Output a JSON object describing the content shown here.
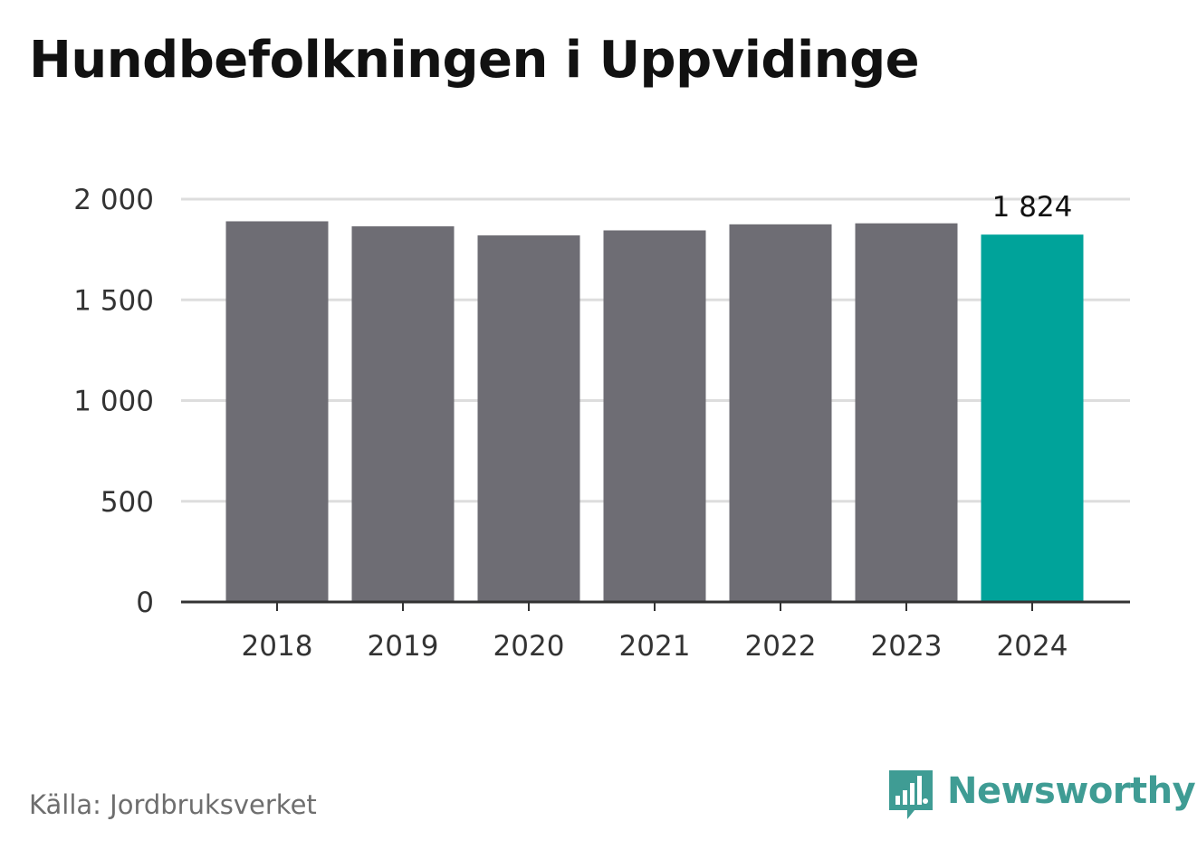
{
  "title": "Hundbefolkningen i Uppvidinge",
  "source": "Källa: Jordbruksverket",
  "brand": {
    "name": "Newsworthy",
    "icon": "newsworthy-logo-icon",
    "color": "#3f9c94"
  },
  "chart_data": {
    "type": "bar",
    "title": "Hundbefolkningen i Uppvidinge",
    "xlabel": "",
    "ylabel": "",
    "categories": [
      "2018",
      "2019",
      "2020",
      "2021",
      "2022",
      "2023",
      "2024"
    ],
    "values": [
      1890,
      1865,
      1820,
      1845,
      1875,
      1880,
      1824
    ],
    "ylim": [
      0,
      2000
    ],
    "yticks": [
      0,
      500,
      1000,
      1500,
      2000
    ],
    "ytick_labels": [
      "0",
      "500",
      "1 000",
      "1 500",
      "2 000"
    ],
    "annotations": [
      {
        "category": "2024",
        "text": "1 824"
      }
    ],
    "highlight_category": "2024",
    "colors": {
      "bar": "#6e6d74",
      "highlight": "#00a39a",
      "grid": "#dddddd",
      "axis": "#333333"
    },
    "grid": true,
    "legend": "none"
  }
}
